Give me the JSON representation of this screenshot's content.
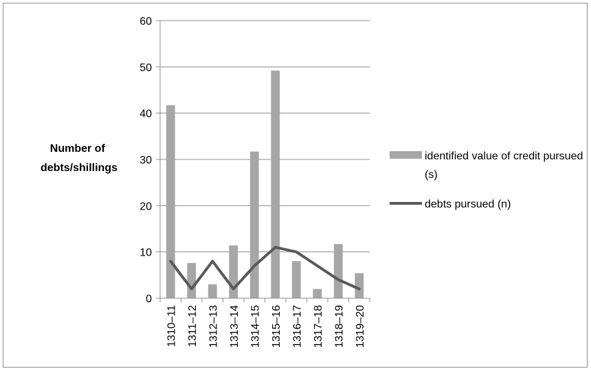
{
  "chart_data": {
    "type": "bar",
    "title": "",
    "ylabel": "Number of\ndebts/shillings",
    "xlabel": "",
    "ylim": [
      0,
      60
    ],
    "yticks": [
      0,
      10,
      20,
      30,
      40,
      50,
      60
    ],
    "grid": true,
    "legend_position": "right",
    "categories": [
      "1310–11",
      "1311–12",
      "1312–13",
      "1313–14",
      "1314–15",
      "1315–16",
      "1316–17",
      "1317–18",
      "1318–19",
      "1319–20"
    ],
    "series": [
      {
        "name": "identified value of credit pursued (s)",
        "type": "bar",
        "color": "#a6a6a6",
        "values": [
          41.7,
          7.6,
          3.0,
          11.4,
          31.7,
          49.2,
          8.0,
          2.0,
          11.7,
          5.4
        ]
      },
      {
        "name": "debts pursued (n)",
        "type": "line",
        "color": "#595959",
        "values": [
          8,
          2,
          8,
          2,
          7,
          11,
          10,
          7,
          4,
          2
        ]
      }
    ]
  }
}
